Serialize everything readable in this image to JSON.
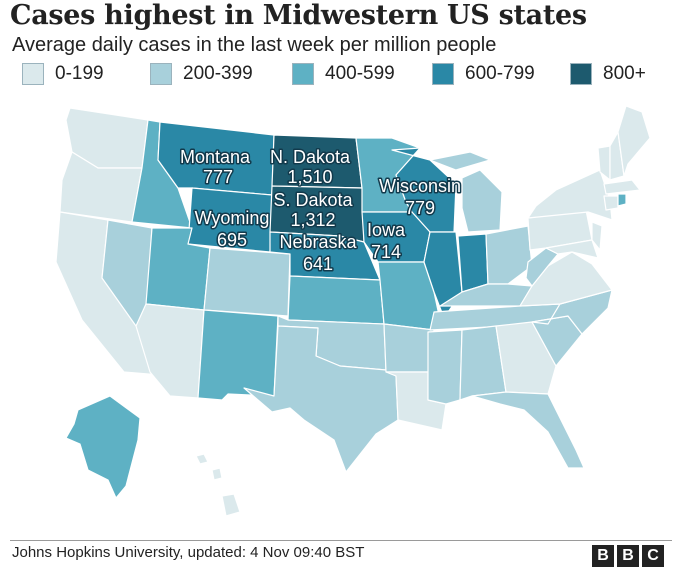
{
  "title": "Cases highest in Midwestern US states",
  "subtitle": "Average daily cases in the last week per million people",
  "legend": [
    {
      "label": "0-199",
      "color": "#dbe9ec"
    },
    {
      "label": "200-399",
      "color": "#a8d0db"
    },
    {
      "label": "400-599",
      "color": "#5eb1c4"
    },
    {
      "label": "600-799",
      "color": "#2a88a6"
    },
    {
      "label": "800+",
      "color": "#1d5a6e"
    }
  ],
  "labels": {
    "montana": {
      "name": "Montana",
      "value": "777"
    },
    "north_dakota": {
      "name": "N. Dakota",
      "value": "1,510"
    },
    "south_dakota": {
      "name": "S. Dakota",
      "value": "1,312"
    },
    "wyoming": {
      "name": "Wyoming",
      "value": "695"
    },
    "nebraska": {
      "name": "Nebraska",
      "value": "641"
    },
    "iowa": {
      "name": "Iowa",
      "value": "714"
    },
    "wisconsin": {
      "name": "Wisconsin",
      "value": "779"
    }
  },
  "source": "Johns Hopkins University, updated: 4 Nov 09:40 BST",
  "logo_letters": [
    "B",
    "B",
    "C"
  ]
}
